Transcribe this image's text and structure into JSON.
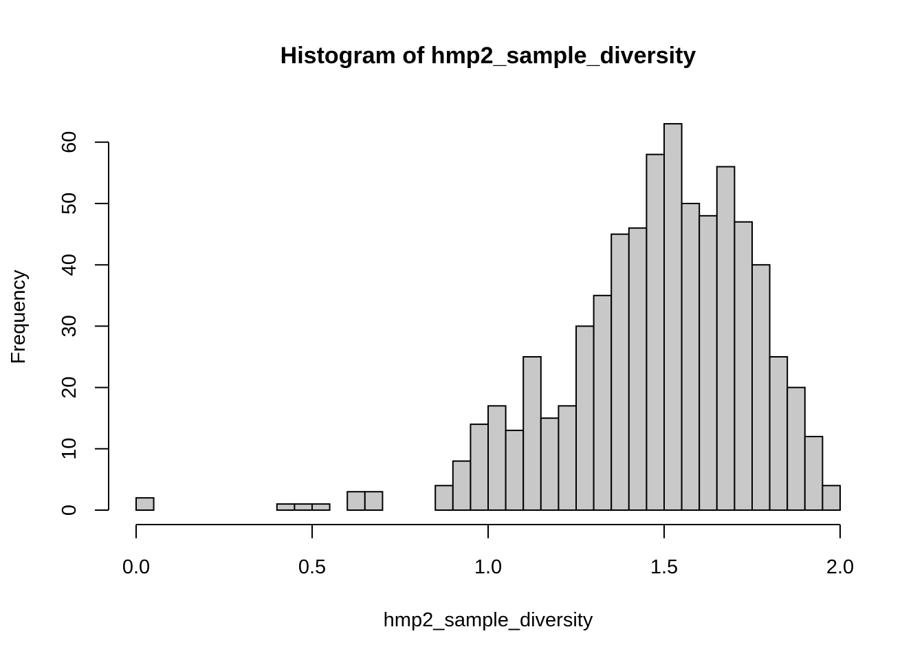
{
  "chart_data": {
    "type": "bar",
    "title": "Histogram of hmp2_sample_diversity",
    "xlabel": "hmp2_sample_diversity",
    "ylabel": "Frequency",
    "xlim": [
      0.0,
      2.0
    ],
    "ylim": [
      0,
      63
    ],
    "bin_width": 0.05,
    "bin_start": 0.0,
    "counts": [
      2,
      0,
      0,
      0,
      0,
      0,
      0,
      0,
      1,
      1,
      1,
      0,
      3,
      3,
      0,
      0,
      0,
      4,
      8,
      14,
      17,
      13,
      25,
      15,
      17,
      30,
      35,
      45,
      46,
      58,
      63,
      50,
      48,
      56,
      47,
      40,
      25,
      20,
      12,
      4
    ],
    "x_ticks": [
      0.0,
      0.5,
      1.0,
      1.5,
      2.0
    ],
    "x_tick_labels": [
      "0.0",
      "0.5",
      "1.0",
      "1.5",
      "2.0"
    ],
    "y_ticks": [
      0,
      10,
      20,
      30,
      40,
      50,
      60
    ],
    "y_tick_labels": [
      "0",
      "10",
      "20",
      "30",
      "40",
      "50",
      "60"
    ],
    "bar_color": "#c8c8c8",
    "border_color": "#000000",
    "grid": false
  }
}
